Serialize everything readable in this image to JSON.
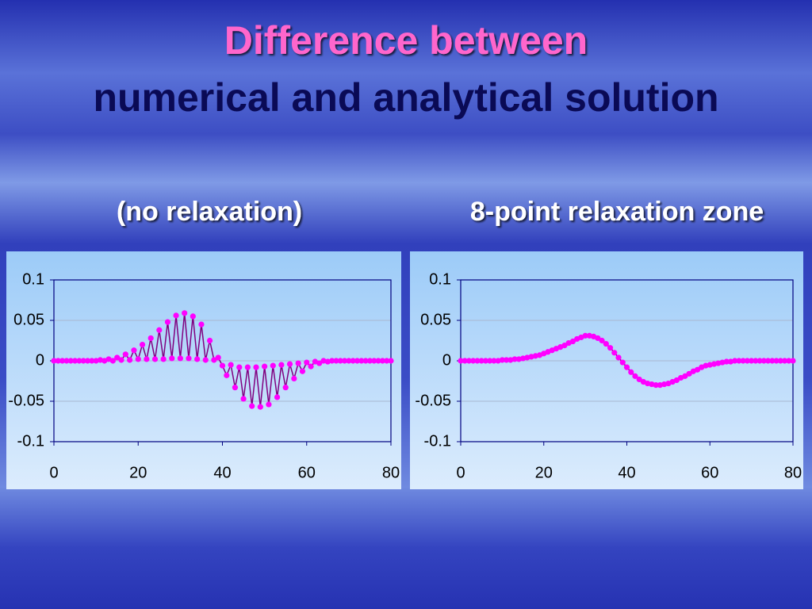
{
  "slide": {
    "title_line1": "Difference  between",
    "title_line2": "numerical  and  analytical  solution"
  },
  "chart_data": [
    {
      "type": "line",
      "title": "(no relaxation)",
      "x": [
        0,
        1,
        2,
        3,
        4,
        5,
        6,
        7,
        8,
        9,
        10,
        11,
        12,
        13,
        14,
        15,
        16,
        17,
        18,
        19,
        20,
        21,
        22,
        23,
        24,
        25,
        26,
        27,
        28,
        29,
        30,
        31,
        32,
        33,
        34,
        35,
        36,
        37,
        38,
        39,
        40,
        41,
        42,
        43,
        44,
        45,
        46,
        47,
        48,
        49,
        50,
        51,
        52,
        53,
        54,
        55,
        56,
        57,
        58,
        59,
        60,
        61,
        62,
        63,
        64,
        65,
        66,
        67,
        68,
        69,
        70,
        71,
        72,
        73,
        74,
        75,
        76,
        77,
        78,
        79,
        80
      ],
      "values": [
        0,
        0,
        0,
        0,
        0,
        0,
        0,
        0,
        0,
        0,
        0,
        0.001,
        0,
        0.002,
        0,
        0.004,
        0.001,
        0.008,
        0.001,
        0.013,
        0.002,
        0.02,
        0.002,
        0.028,
        0.002,
        0.038,
        0.002,
        0.048,
        0.003,
        0.056,
        0.003,
        0.059,
        0.003,
        0.055,
        0.002,
        0.045,
        0.001,
        0.025,
        0.001,
        0.004,
        -0.006,
        -0.018,
        -0.005,
        -0.033,
        -0.008,
        -0.047,
        -0.008,
        -0.056,
        -0.008,
        -0.057,
        -0.007,
        -0.054,
        -0.006,
        -0.045,
        -0.005,
        -0.033,
        -0.004,
        -0.022,
        -0.003,
        -0.013,
        -0.002,
        -0.007,
        -0.001,
        -0.003,
        0,
        -0.001,
        0,
        0,
        0,
        0,
        0,
        0,
        0,
        0,
        0,
        0,
        0,
        0,
        0,
        0,
        0
      ],
      "line_color": "#800080",
      "marker_color": "#ff00ff",
      "xlim": [
        0,
        80
      ],
      "xticks": [
        0,
        20,
        40,
        60,
        80
      ],
      "ylim": [
        -0.1,
        0.1
      ],
      "yticks": [
        -0.1,
        -0.05,
        0,
        0.05,
        0.1
      ],
      "grid": true
    },
    {
      "type": "line",
      "title": "8-point relaxation zone",
      "x": [
        0,
        1,
        2,
        3,
        4,
        5,
        6,
        7,
        8,
        9,
        10,
        11,
        12,
        13,
        14,
        15,
        16,
        17,
        18,
        19,
        20,
        21,
        22,
        23,
        24,
        25,
        26,
        27,
        28,
        29,
        30,
        31,
        32,
        33,
        34,
        35,
        36,
        37,
        38,
        39,
        40,
        41,
        42,
        43,
        44,
        45,
        46,
        47,
        48,
        49,
        50,
        51,
        52,
        53,
        54,
        55,
        56,
        57,
        58,
        59,
        60,
        61,
        62,
        63,
        64,
        65,
        66,
        67,
        68,
        69,
        70,
        71,
        72,
        73,
        74,
        75,
        76,
        77,
        78,
        79,
        80
      ],
      "values": [
        0,
        0,
        0,
        0,
        0,
        0,
        0,
        0,
        0,
        0,
        0.001,
        0.001,
        0.001,
        0.002,
        0.002,
        0.003,
        0.004,
        0.005,
        0.006,
        0.007,
        0.009,
        0.011,
        0.013,
        0.015,
        0.017,
        0.019,
        0.022,
        0.024,
        0.027,
        0.029,
        0.031,
        0.031,
        0.03,
        0.028,
        0.025,
        0.021,
        0.016,
        0.01,
        0.004,
        -0.002,
        -0.008,
        -0.014,
        -0.019,
        -0.023,
        -0.026,
        -0.028,
        -0.029,
        -0.03,
        -0.03,
        -0.029,
        -0.028,
        -0.026,
        -0.024,
        -0.021,
        -0.019,
        -0.016,
        -0.013,
        -0.011,
        -0.008,
        -0.006,
        -0.005,
        -0.004,
        -0.003,
        -0.002,
        -0.001,
        -0.001,
        0,
        0,
        0,
        0,
        0,
        0,
        0,
        0,
        0,
        0,
        0,
        0,
        0,
        0,
        0
      ],
      "line_color": "#800080",
      "marker_color": "#ff00ff",
      "xlim": [
        0,
        80
      ],
      "xticks": [
        0,
        20,
        40,
        60,
        80
      ],
      "ylim": [
        -0.1,
        0.1
      ],
      "yticks": [
        -0.1,
        -0.05,
        0,
        0.05,
        0.1
      ],
      "grid": true
    }
  ]
}
